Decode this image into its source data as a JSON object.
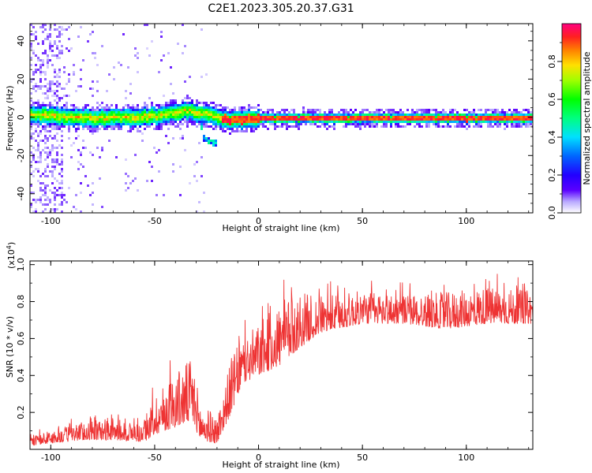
{
  "title": "C2E1.2023.305.20.37.G31",
  "chart_data": [
    {
      "type": "heatmap",
      "xlabel": "Height of straight line (km)",
      "ylabel": "Frequency (Hz)",
      "xlim": [
        -110,
        132
      ],
      "ylim": [
        -50,
        49
      ],
      "xticks": [
        -100,
        -50,
        0,
        50,
        100
      ],
      "yticks": [
        -40,
        -20,
        0,
        20,
        40
      ],
      "colorbar": {
        "label": "Normalized spectral amplitude",
        "range": [
          0,
          1
        ],
        "ticks": [
          "0.0",
          "0.2",
          "0.4",
          "0.6",
          "0.8"
        ]
      },
      "band_center_hz": [
        {
          "x": -110,
          "f": 2
        },
        {
          "x": -80,
          "f": 0
        },
        {
          "x": -50,
          "f": 1
        },
        {
          "x": -35,
          "f": 4
        },
        {
          "x": -25,
          "f": 2
        },
        {
          "x": -15,
          "f": -1
        },
        {
          "x": 0,
          "f": 0
        },
        {
          "x": 50,
          "f": 0
        },
        {
          "x": 132,
          "f": 0
        }
      ],
      "branch_hz": [
        {
          "x": -28,
          "f": -4
        },
        {
          "x": -27,
          "f": -10
        },
        {
          "x": -22,
          "f": -13
        }
      ]
    },
    {
      "type": "line",
      "xlabel": "Height of straight line (km)",
      "ylabel": "SNR (10 * v/v)",
      "y_multiplier": "(x10",
      "y_multiplier_exp": "4",
      "y_multiplier_close": ")",
      "xlim": [
        -110,
        132
      ],
      "ylim": [
        0,
        1.02
      ],
      "xticks": [
        -100,
        -50,
        0,
        50,
        100
      ],
      "yticks": [
        "0.2",
        "0.4",
        "0.6",
        "0.8",
        "1.0"
      ],
      "color": "#ee3333",
      "envelope": [
        {
          "x": -110,
          "base": 0.02,
          "amp": 0.05
        },
        {
          "x": -85,
          "base": 0.05,
          "amp": 0.1
        },
        {
          "x": -70,
          "base": 0.05,
          "amp": 0.12
        },
        {
          "x": -55,
          "base": 0.04,
          "amp": 0.1
        },
        {
          "x": -50,
          "base": 0.08,
          "amp": 0.22
        },
        {
          "x": -40,
          "base": 0.12,
          "amp": 0.3
        },
        {
          "x": -32,
          "base": 0.15,
          "amp": 0.35
        },
        {
          "x": -28,
          "base": 0.05,
          "amp": 0.2
        },
        {
          "x": -20,
          "base": 0.03,
          "amp": 0.15
        },
        {
          "x": -13,
          "base": 0.2,
          "amp": 0.3
        },
        {
          "x": -8,
          "base": 0.35,
          "amp": 0.25
        },
        {
          "x": 0,
          "base": 0.4,
          "amp": 0.28
        },
        {
          "x": 10,
          "base": 0.45,
          "amp": 0.35
        },
        {
          "x": 20,
          "base": 0.55,
          "amp": 0.3
        },
        {
          "x": 30,
          "base": 0.63,
          "amp": 0.2
        },
        {
          "x": 50,
          "base": 0.68,
          "amp": 0.18
        },
        {
          "x": 70,
          "base": 0.68,
          "amp": 0.16
        },
        {
          "x": 90,
          "base": 0.65,
          "amp": 0.2
        },
        {
          "x": 110,
          "base": 0.68,
          "amp": 0.2
        },
        {
          "x": 132,
          "base": 0.68,
          "amp": 0.18
        }
      ]
    }
  ]
}
